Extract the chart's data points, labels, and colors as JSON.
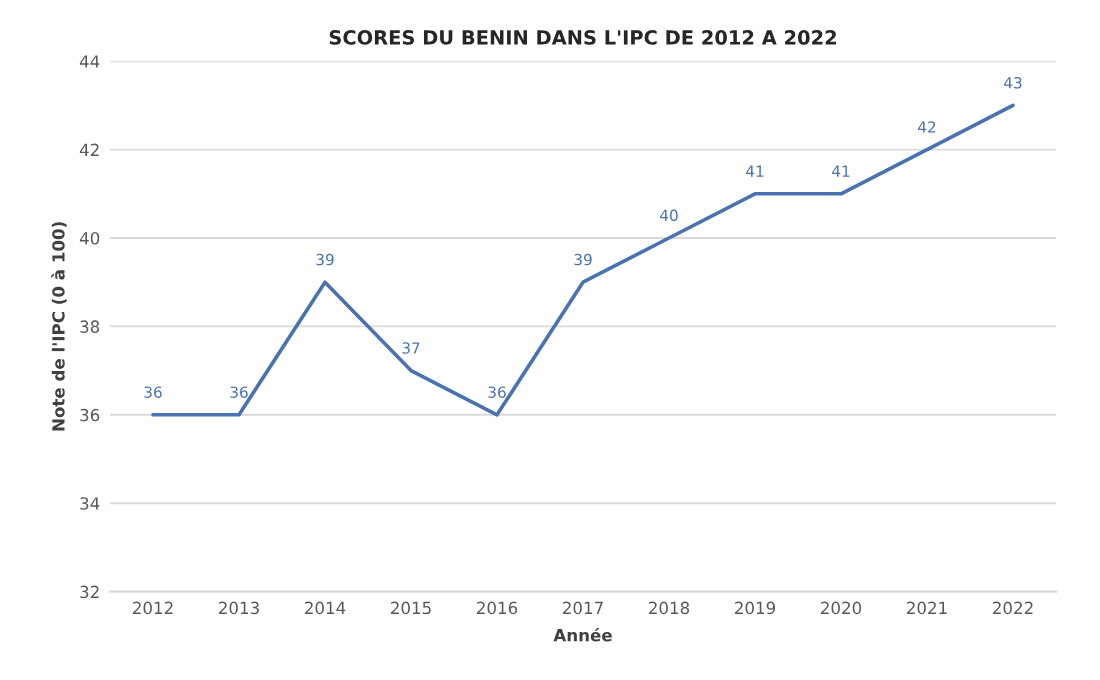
{
  "chart_data": {
    "type": "line",
    "title": "SCORES DU BENIN DANS L'IPC DE 2012 A 2022",
    "xlabel": "Année",
    "ylabel": "Note de l'IPC (0 à 100)",
    "categories": [
      "2012",
      "2013",
      "2014",
      "2015",
      "2016",
      "2017",
      "2018",
      "2019",
      "2020",
      "2021",
      "2022"
    ],
    "series": [
      {
        "color": "#4a72b0",
        "values": [
          36,
          36,
          39,
          37,
          36,
          39,
          40,
          41,
          41,
          42,
          43
        ]
      }
    ],
    "ylim": [
      32,
      44
    ],
    "yticks": [
      32,
      34,
      36,
      38,
      40,
      42,
      44
    ],
    "grid": "y",
    "data_labels": true,
    "marker": "none",
    "line_style": "solid"
  }
}
